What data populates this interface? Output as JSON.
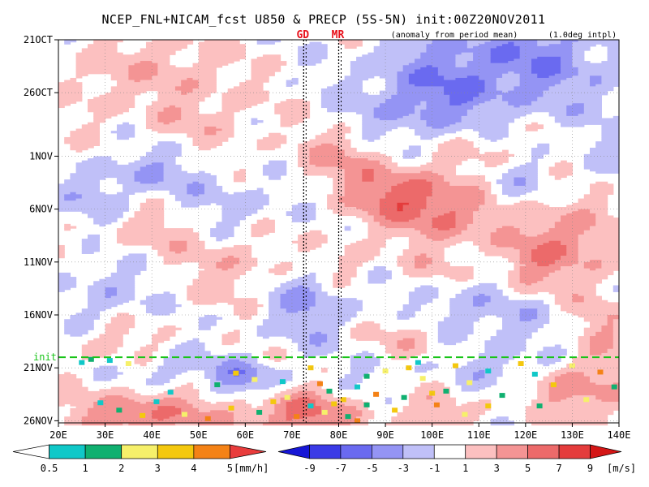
{
  "chart_data": {
    "type": "heatmap",
    "title": "NCEP_FNL+NICAM_fcst U850 & PRECP (5S-5N) init:00Z20NOV2011",
    "subtitle_left": "(anomaly from period mean)",
    "subtitle_right": "(1.0deg intpl)",
    "x_ticks": [
      "20E",
      "30E",
      "40E",
      "50E",
      "60E",
      "70E",
      "80E",
      "90E",
      "100E",
      "110E",
      "120E",
      "130E",
      "140E"
    ],
    "x_values": [
      20,
      30,
      40,
      50,
      60,
      70,
      80,
      90,
      100,
      110,
      120,
      130,
      140
    ],
    "xlim": [
      20,
      140
    ],
    "y_ticks": [
      "21OCT",
      "26OCT",
      "1NOV",
      "6NOV",
      "11NOV",
      "16NOV",
      "21NOV",
      "26NOV"
    ],
    "y_values": [
      0,
      5,
      11,
      16,
      21,
      26,
      31,
      36
    ],
    "ylim": [
      0,
      36.2
    ],
    "markers": [
      {
        "label": "GD",
        "lon": 72.5
      },
      {
        "label": "MR",
        "lon": 80.0
      }
    ],
    "init_line": {
      "label": "init",
      "day": 30
    },
    "u850": {
      "name": "U850 anomaly",
      "unit": "[m/s]",
      "levels": [
        -9,
        -7,
        -5,
        -3,
        -1,
        1,
        3,
        5,
        7,
        9
      ],
      "level_labels": [
        "-9",
        "-7",
        "-5",
        "-3",
        "-1",
        "1",
        "3",
        "5",
        "7",
        "9"
      ],
      "colors": [
        "#1616d6",
        "#3a3ae6",
        "#6a6af0",
        "#9494f4",
        "#c0c0f8",
        "#ffffff",
        "#fcc0c0",
        "#f49494",
        "#ec6a6a",
        "#e43c3c",
        "#d41616"
      ],
      "features": [
        {
          "lon": 118,
          "day": 2,
          "sx": 22,
          "sy": 5,
          "amp": -4.5
        },
        {
          "lon": 98,
          "day": 6,
          "sx": 14,
          "sy": 4,
          "amp": -3.5
        },
        {
          "lon": 45,
          "day": 2,
          "sx": 12,
          "sy": 3,
          "amp": 2.2
        },
        {
          "lon": 50,
          "day": 7,
          "sx": 14,
          "sy": 3.5,
          "amp": 2.0
        },
        {
          "lon": 28,
          "day": 4,
          "sx": 7,
          "sy": 4,
          "amp": 1.8
        },
        {
          "lon": 92,
          "day": 14.5,
          "sx": 10,
          "sy": 2.6,
          "amp": 5.6
        },
        {
          "lon": 103,
          "day": 16.5,
          "sx": 10,
          "sy": 3,
          "amp": 4.8
        },
        {
          "lon": 128,
          "day": 19,
          "sx": 12,
          "sy": 4,
          "amp": 4.6
        },
        {
          "lon": 80,
          "day": 11,
          "sx": 10,
          "sy": 2.5,
          "amp": 3.0
        },
        {
          "lon": 110,
          "day": 10,
          "sx": 9,
          "sy": 2.5,
          "amp": 2.2
        },
        {
          "lon": 40,
          "day": 12.5,
          "sx": 12,
          "sy": 2.5,
          "amp": -2.6
        },
        {
          "lon": 28,
          "day": 15,
          "sx": 7,
          "sy": 2.5,
          "amp": -2.0
        },
        {
          "lon": 58,
          "day": 15.5,
          "sx": 10,
          "sy": 2.5,
          "amp": -1.8
        },
        {
          "lon": 118,
          "day": 14,
          "sx": 8,
          "sy": 2.5,
          "amp": -2.0
        },
        {
          "lon": 138,
          "day": 12,
          "sx": 6,
          "sy": 3,
          "amp": -1.6
        },
        {
          "lon": 40,
          "day": 18,
          "sx": 10,
          "sy": 2.5,
          "amp": 2.0
        },
        {
          "lon": 58,
          "day": 21.5,
          "sx": 10,
          "sy": 3,
          "amp": 2.4
        },
        {
          "lon": 30,
          "day": 24,
          "sx": 8,
          "sy": 3,
          "amp": -2.4
        },
        {
          "lon": 74,
          "day": 25,
          "sx": 9,
          "sy": 3.5,
          "amp": -3.4
        },
        {
          "lon": 82,
          "day": 21,
          "sx": 6,
          "sy": 2.5,
          "amp": 2.2
        },
        {
          "lon": 105,
          "day": 25,
          "sx": 10,
          "sy": 2.5,
          "amp": -2.4
        },
        {
          "lon": 118,
          "day": 27,
          "sx": 10,
          "sy": 3,
          "amp": -1.8
        },
        {
          "lon": 95,
          "day": 28,
          "sx": 7,
          "sy": 2.5,
          "amp": 2.2
        },
        {
          "lon": 100,
          "day": 22,
          "sx": 6,
          "sy": 2,
          "amp": 1.6
        },
        {
          "lon": 136,
          "day": 27,
          "sx": 6,
          "sy": 3,
          "amp": 2.4
        },
        {
          "lon": 120,
          "day": 22,
          "sx": 6,
          "sy": 2,
          "amp": 1.8
        },
        {
          "lon": 60,
          "day": 32,
          "sx": 7,
          "sy": 1.6,
          "amp": -4.4
        },
        {
          "lon": 45,
          "day": 31,
          "sx": 8,
          "sy": 1.5,
          "amp": -2.6
        },
        {
          "lon": 115,
          "day": 31,
          "sx": 10,
          "sy": 1.5,
          "amp": -2.2
        },
        {
          "lon": 38,
          "day": 35.5,
          "sx": 16,
          "sy": 2.2,
          "amp": 5.2
        },
        {
          "lon": 72,
          "day": 35.5,
          "sx": 12,
          "sy": 2.2,
          "amp": 5.6
        },
        {
          "lon": 100,
          "day": 35.5,
          "sx": 9,
          "sy": 2.0,
          "amp": 2.4
        },
        {
          "lon": 133,
          "day": 33,
          "sx": 10,
          "sy": 3,
          "amp": 4.2
        },
        {
          "lon": 32,
          "day": 28.5,
          "sx": 8,
          "sy": 2,
          "amp": 2.0
        },
        {
          "lon": 90,
          "day": 31.5,
          "sx": 6,
          "sy": 1.5,
          "amp": -1.8
        }
      ]
    },
    "precip": {
      "name": "PRECP",
      "unit": "[mm/h]",
      "levels": [
        0.5,
        1,
        2,
        3,
        4,
        5
      ],
      "level_labels": [
        "0.5",
        "1",
        "2",
        "3",
        "4",
        "5"
      ],
      "colors": [
        "#ffffff",
        "#10c8c8",
        "#10b070",
        "#f6f06a",
        "#f4c80e",
        "#f48216",
        "#e83c3c"
      ],
      "cells": [
        {
          "lon": 27,
          "day": 30.2,
          "lvl": 2
        },
        {
          "lon": 25,
          "day": 30.5,
          "lvl": 1
        },
        {
          "lon": 31,
          "day": 30.3,
          "lvl": 1
        },
        {
          "lon": 35,
          "day": 30.6,
          "lvl": 3
        },
        {
          "lon": 58,
          "day": 31.5,
          "lvl": 4
        },
        {
          "lon": 62,
          "day": 32.1,
          "lvl": 3
        },
        {
          "lon": 74,
          "day": 31.0,
          "lvl": 4
        },
        {
          "lon": 76,
          "day": 32.5,
          "lvl": 5
        },
        {
          "lon": 78,
          "day": 33.2,
          "lvl": 2
        },
        {
          "lon": 81,
          "day": 34.0,
          "lvl": 4
        },
        {
          "lon": 84,
          "day": 32.8,
          "lvl": 1
        },
        {
          "lon": 86,
          "day": 34.5,
          "lvl": 2
        },
        {
          "lon": 88,
          "day": 33.5,
          "lvl": 5
        },
        {
          "lon": 90,
          "day": 31.3,
          "lvl": 3
        },
        {
          "lon": 95,
          "day": 31.0,
          "lvl": 4
        },
        {
          "lon": 97,
          "day": 30.5,
          "lvl": 1
        },
        {
          "lon": 98,
          "day": 32.0,
          "lvl": 3
        },
        {
          "lon": 100,
          "day": 33.4,
          "lvl": 4
        },
        {
          "lon": 101,
          "day": 34.5,
          "lvl": 5
        },
        {
          "lon": 103,
          "day": 33.2,
          "lvl": 2
        },
        {
          "lon": 105,
          "day": 30.8,
          "lvl": 4
        },
        {
          "lon": 108,
          "day": 32.4,
          "lvl": 3
        },
        {
          "lon": 112,
          "day": 31.3,
          "lvl": 1
        },
        {
          "lon": 115,
          "day": 33.6,
          "lvl": 2
        },
        {
          "lon": 119,
          "day": 30.6,
          "lvl": 4
        },
        {
          "lon": 122,
          "day": 31.6,
          "lvl": 1
        },
        {
          "lon": 126,
          "day": 32.6,
          "lvl": 4
        },
        {
          "lon": 130,
          "day": 30.8,
          "lvl": 3
        },
        {
          "lon": 136,
          "day": 31.4,
          "lvl": 5
        },
        {
          "lon": 139,
          "day": 32.8,
          "lvl": 2
        },
        {
          "lon": 33,
          "day": 35.0,
          "lvl": 2
        },
        {
          "lon": 38,
          "day": 35.5,
          "lvl": 4
        },
        {
          "lon": 41,
          "day": 34.2,
          "lvl": 1
        },
        {
          "lon": 47,
          "day": 35.4,
          "lvl": 3
        },
        {
          "lon": 52,
          "day": 35.8,
          "lvl": 5
        },
        {
          "lon": 57,
          "day": 34.8,
          "lvl": 4
        },
        {
          "lon": 63,
          "day": 35.2,
          "lvl": 2
        },
        {
          "lon": 66,
          "day": 34.2,
          "lvl": 4
        },
        {
          "lon": 69,
          "day": 33.8,
          "lvl": 3
        },
        {
          "lon": 71,
          "day": 35.6,
          "lvl": 5
        },
        {
          "lon": 74,
          "day": 34.6,
          "lvl": 1
        },
        {
          "lon": 77,
          "day": 35.2,
          "lvl": 3
        },
        {
          "lon": 79,
          "day": 34.4,
          "lvl": 4
        },
        {
          "lon": 82,
          "day": 35.6,
          "lvl": 2
        },
        {
          "lon": 84,
          "day": 36.0,
          "lvl": 5
        },
        {
          "lon": 92,
          "day": 35.0,
          "lvl": 4
        },
        {
          "lon": 94,
          "day": 33.8,
          "lvl": 2
        },
        {
          "lon": 107,
          "day": 35.4,
          "lvl": 3
        },
        {
          "lon": 112,
          "day": 34.6,
          "lvl": 4
        },
        {
          "lon": 123,
          "day": 34.6,
          "lvl": 2
        },
        {
          "lon": 29,
          "day": 34.3,
          "lvl": 1
        },
        {
          "lon": 44,
          "day": 33.3,
          "lvl": 1
        },
        {
          "lon": 54,
          "day": 32.6,
          "lvl": 2
        },
        {
          "lon": 68,
          "day": 32.3,
          "lvl": 1
        },
        {
          "lon": 86,
          "day": 31.8,
          "lvl": 2
        },
        {
          "lon": 133,
          "day": 34.0,
          "lvl": 3
        }
      ]
    }
  },
  "legend": {
    "precip_unit": "[mm/h]",
    "u850_unit": "[m/s]"
  }
}
